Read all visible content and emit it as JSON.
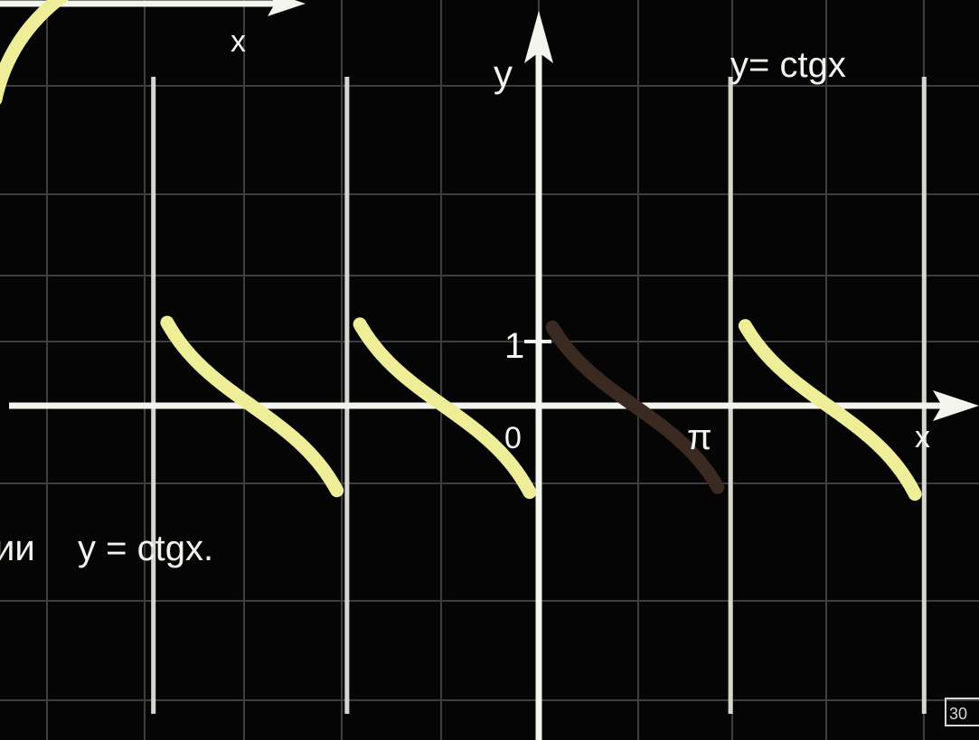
{
  "chart_data": {
    "type": "line",
    "title": "y= ctgx",
    "caption_fragment": "ии",
    "caption_formula": "y = ctgx.",
    "xlabel": "x",
    "top_axis_label": "x",
    "ylabel": "y",
    "tick_labels": {
      "origin": "0",
      "pi": "π",
      "one": "1"
    },
    "xlim": [
      -5.93,
      4.75
    ],
    "ylim": [
      -3.65,
      4.35
    ],
    "asymptotes_x": [
      -6.283,
      -4.2,
      -2.09,
      0,
      2.09,
      4.2
    ],
    "grid": true,
    "series": [
      {
        "color": "#eeed98",
        "branches": [
          {
            "x_range": [
              -4.05,
              -2.2
            ],
            "x_center": -3.13,
            "x_scale": 0.667
          },
          {
            "x_range": [
              -1.95,
              -0.1
            ],
            "x_center": -1.04,
            "x_scale": 0.667
          },
          {
            "x_range": [
              2.25,
              4.1
            ],
            "x_center": 3.15,
            "x_scale": 0.667
          }
        ]
      },
      {
        "color": "#3a2a22",
        "branches": [
          {
            "x_range": [
              0.15,
              1.95
            ],
            "x_center": 1.04,
            "x_scale": 0.667
          }
        ]
      },
      {
        "color": "#eeed98",
        "branches": [
          {
            "x_range": [
              -5.95,
              -5.6
            ],
            "x_center": -5.2,
            "x_scale": 0.667,
            "clipped": true
          }
        ]
      }
    ]
  },
  "badge": {
    "text": "30"
  }
}
